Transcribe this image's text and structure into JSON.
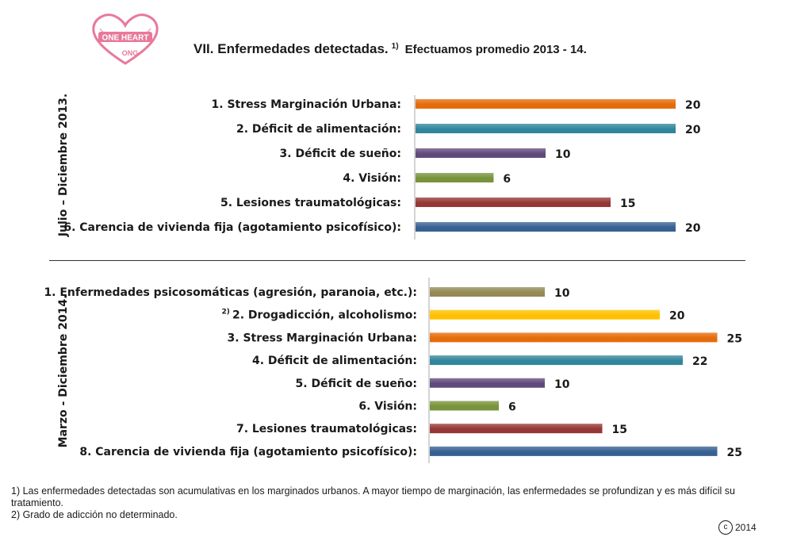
{
  "logo": {
    "line1": "ONE HEART",
    "line2": "ONG"
  },
  "title": {
    "main": "VII. Enfermedades detectadas.",
    "sup": "1)",
    "sub": "Efectuamos promedio 2013 - 14."
  },
  "colors": {
    "orange": "#E46C0A",
    "teal": "#31859C",
    "purple": "#604A7B",
    "green": "#77933C",
    "red": "#953735",
    "blue": "#376092",
    "khaki": "#948A54",
    "yellow": "#FFC000"
  },
  "chart_data": [
    {
      "type": "bar",
      "orientation": "horizontal",
      "period_label": "Julio – Diciembre 2013.",
      "categories": [
        "1. Stress Marginación Urbana:",
        "2. Déficit de alimentación:",
        "3. Déficit de sueño:",
        "4. Visión:",
        "5. Lesiones traumatológicas:",
        "6. Carencia de vivienda fija (agotamiento psicofísico):"
      ],
      "values": [
        20,
        20,
        10,
        6,
        15,
        20
      ],
      "bar_colors": [
        "#E46C0A",
        "#31859C",
        "#604A7B",
        "#77933C",
        "#953735",
        "#376092"
      ],
      "data_labels": [
        "20",
        "20",
        "10",
        "6",
        "15",
        "20"
      ]
    },
    {
      "type": "bar",
      "orientation": "horizontal",
      "period_label": "Marzo - Diciembre 2014.",
      "categories": [
        "1. Enfermedades psicosomáticas (agresión, paranoia, etc.):",
        "2. Drogadicción, alcoholismo:",
        "3. Stress Marginación Urbana:",
        "4. Déficit de alimentación:",
        "5. Déficit de sueño:",
        "6. Visión:",
        "7. Lesiones traumatológicas:",
        "8. Carencia de vivienda fija (agotamiento psicofísico):"
      ],
      "category_sups": [
        "",
        "2)",
        "",
        "",
        "",
        "",
        "",
        ""
      ],
      "values": [
        10,
        20,
        25,
        22,
        10,
        6,
        15,
        25
      ],
      "bar_colors": [
        "#948A54",
        "#FFC000",
        "#E46C0A",
        "#31859C",
        "#604A7B",
        "#77933C",
        "#953735",
        "#376092"
      ],
      "data_labels": [
        "10",
        "20",
        "25",
        "22",
        "10",
        "6",
        "15",
        "25"
      ]
    }
  ],
  "footnotes": [
    "1) Las enfermedades detectadas son acumulativas en los marginados urbanos. A mayor tiempo de marginación, las enfermedades se profundizan y es más difícil su tratamiento.",
    "2) Grado de adicción no determinado."
  ],
  "copyright": {
    "symbol": "c",
    "year": "2014"
  }
}
